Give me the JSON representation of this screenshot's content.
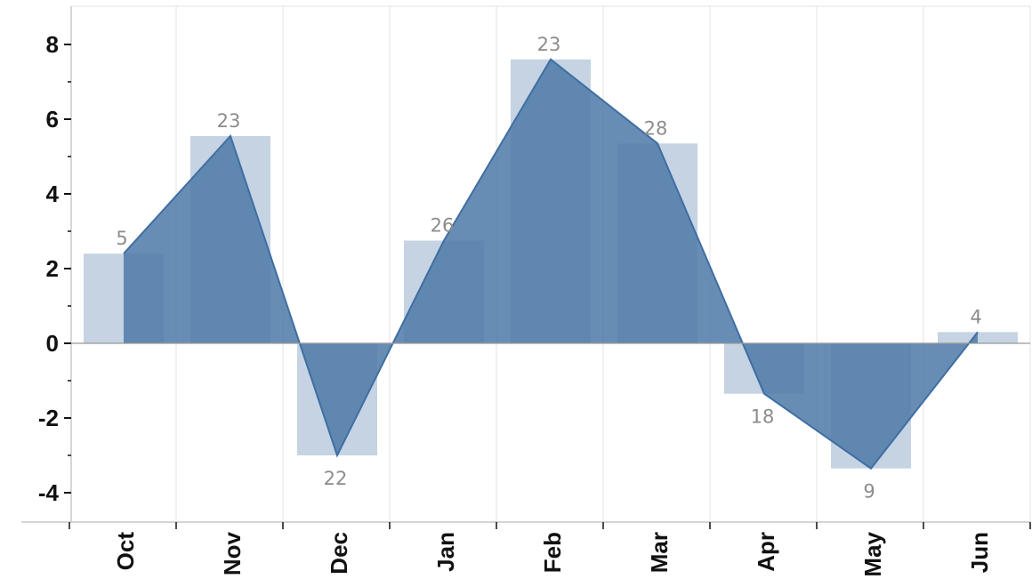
{
  "chart_data": {
    "type": "bar",
    "categories": [
      "Oct",
      "Nov",
      "Dec",
      "Jan",
      "Feb",
      "Mar",
      "Apr",
      "May",
      "Jun"
    ],
    "series": [
      {
        "values": [
          2.4,
          5.55,
          -3.0,
          2.75,
          7.6,
          5.35,
          -1.35,
          -3.35,
          0.3
        ],
        "mark": "bar"
      },
      {
        "values": [
          2.4,
          5.55,
          -3.0,
          2.75,
          7.6,
          5.35,
          -1.35,
          -3.35,
          0.3
        ],
        "mark": "area"
      }
    ],
    "data_labels": [
      "5",
      "23",
      "22",
      "26",
      "23",
      "28",
      "18",
      "9",
      "4"
    ],
    "yticks": [
      -4,
      -2,
      0,
      2,
      4,
      6,
      8
    ],
    "ytick_labels": [
      "-4",
      "-2",
      "0",
      "2",
      "4",
      "6",
      "8"
    ],
    "ylim": [
      -4.8,
      9.0
    ],
    "title": "",
    "xlabel": "",
    "ylabel": "",
    "grid": "vertical",
    "legend": "none",
    "colors": {
      "bar": "#c5d3e3",
      "area": "#4e79a7",
      "grid": "#e3e3e3",
      "axis": "#999999"
    }
  }
}
